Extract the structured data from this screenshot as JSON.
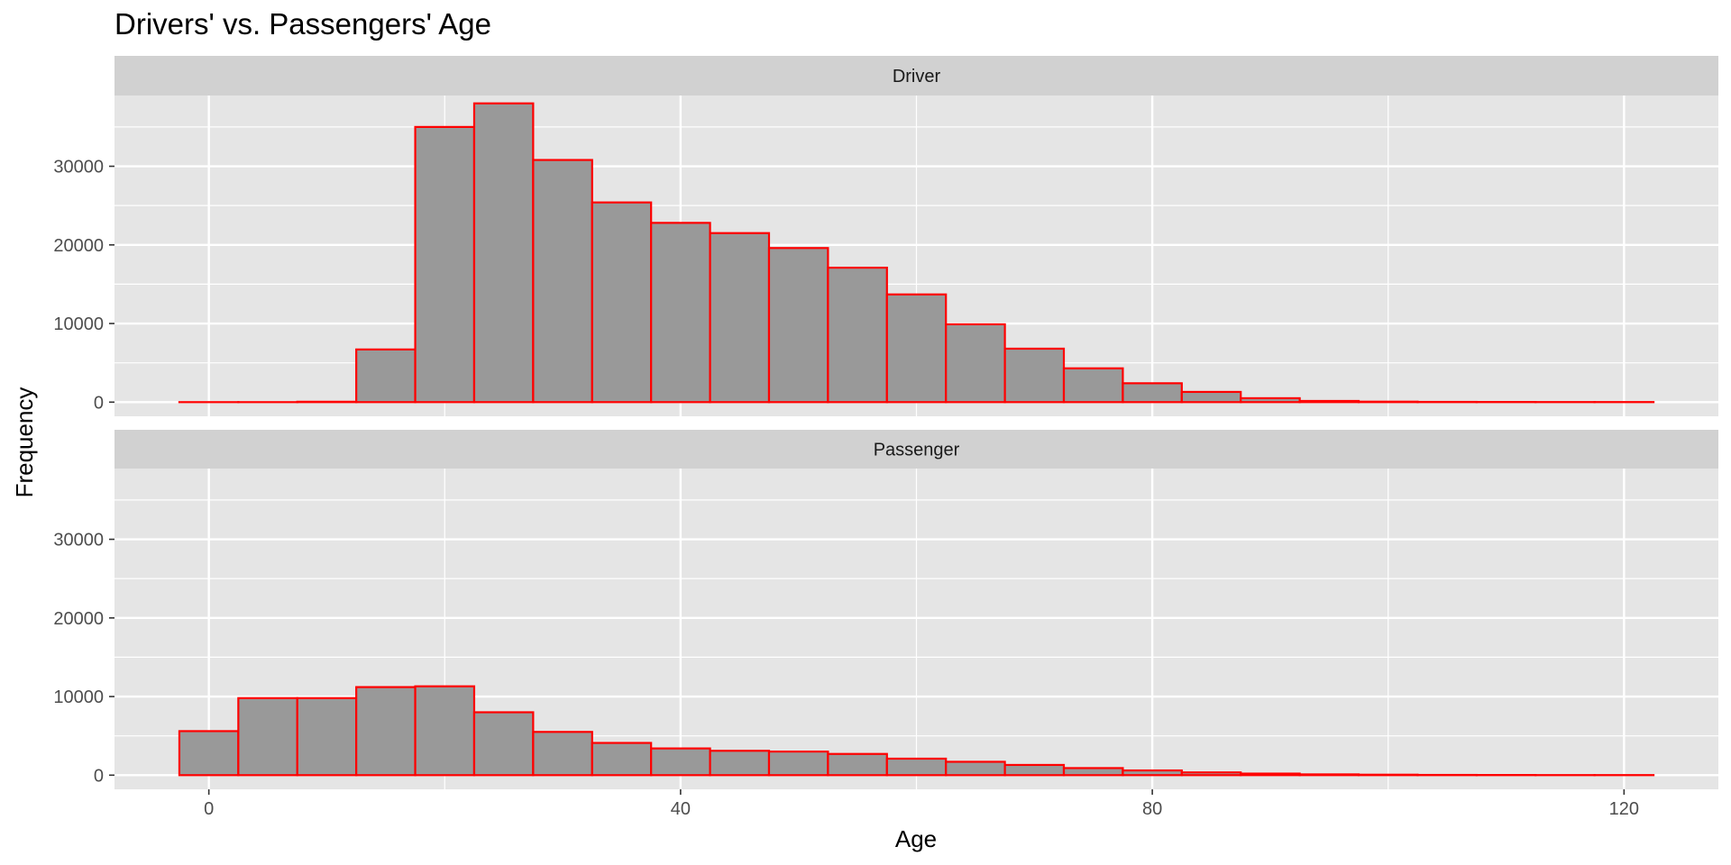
{
  "chart_data": {
    "type": "bar",
    "title": "Drivers' vs. Passengers' Age",
    "xlabel": "Age",
    "ylabel": "Frequency",
    "xlim": [
      -8,
      128
    ],
    "ylim": [
      -1800,
      39000
    ],
    "x_ticks": [
      0,
      40,
      80,
      120
    ],
    "y_ticks": [
      0,
      10000,
      20000,
      30000
    ],
    "bin_width": 5,
    "grid": true,
    "facet_layout": "stacked vertically, shared axes",
    "colors": {
      "bar_fill": "#999999",
      "bar_outline": "#ff0000",
      "panel_background": "#e5e5e5",
      "grid": "#ffffff",
      "strip_background": "#d1d1d1"
    },
    "bin_start": [
      -2.5,
      2.5,
      7.5,
      12.5,
      17.5,
      22.5,
      27.5,
      32.5,
      37.5,
      42.5,
      47.5,
      52.5,
      57.5,
      62.5,
      67.5,
      72.5,
      77.5,
      82.5,
      87.5,
      92.5,
      97.5,
      102.5,
      107.5,
      112.5,
      117.5
    ],
    "facets": [
      {
        "label": "Driver",
        "values": [
          0,
          0,
          50,
          6700,
          35000,
          38000,
          30800,
          25400,
          22800,
          21500,
          19600,
          17100,
          13700,
          9900,
          6800,
          4300,
          2400,
          1300,
          500,
          150,
          60,
          30,
          20,
          10,
          10
        ]
      },
      {
        "label": "Passenger",
        "values": [
          5600,
          9800,
          9800,
          11200,
          11300,
          8000,
          5500,
          4100,
          3400,
          3100,
          3000,
          2700,
          2100,
          1700,
          1300,
          900,
          600,
          350,
          200,
          100,
          60,
          30,
          20,
          10,
          10
        ]
      }
    ]
  }
}
